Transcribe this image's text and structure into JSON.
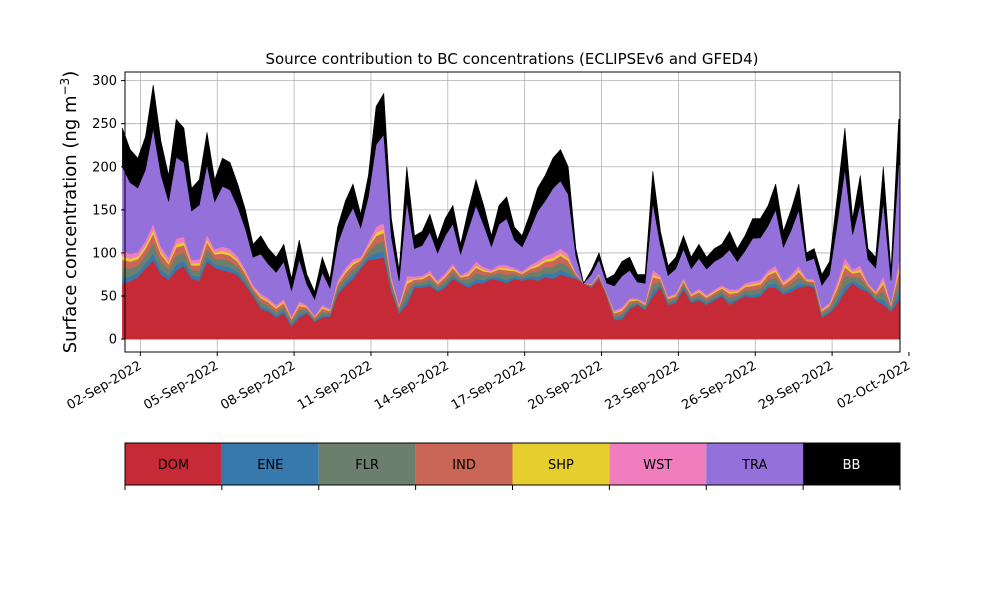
{
  "chart_data": {
    "type": "area",
    "stacked": true,
    "title": "Source contribution to BC concentrations (ECLIPSEv6 and GFED4)",
    "ylabel_text": "Surface concentration (ng m",
    "ylabel_sup": "−3",
    "ylabel_close": ")",
    "xlabel": "",
    "ylim": [
      -15,
      310
    ],
    "yticks": [
      0,
      50,
      100,
      150,
      200,
      250,
      300
    ],
    "xrange_days": [
      0.4,
      30.65
    ],
    "x_date_start": "2022-09-01",
    "xticks": [
      {
        "day": 1,
        "label": "02-Sep-2022"
      },
      {
        "day": 4,
        "label": "05-Sep-2022"
      },
      {
        "day": 7,
        "label": "08-Sep-2022"
      },
      {
        "day": 10,
        "label": "11-Sep-2022"
      },
      {
        "day": 13,
        "label": "14-Sep-2022"
      },
      {
        "day": 16,
        "label": "17-Sep-2022"
      },
      {
        "day": 19,
        "label": "20-Sep-2022"
      },
      {
        "day": 22,
        "label": "23-Sep-2022"
      },
      {
        "day": 25,
        "label": "26-Sep-2022"
      },
      {
        "day": 28,
        "label": "29-Sep-2022"
      },
      {
        "day": 31,
        "label": "02-Oct-2022"
      }
    ],
    "grid": true,
    "legend": "colorbar-below",
    "series": [
      {
        "name": "DOM",
        "color": "#c52a36"
      },
      {
        "name": "ENE",
        "color": "#3778ad"
      },
      {
        "name": "FLR",
        "color": "#6b7f6c"
      },
      {
        "name": "IND",
        "color": "#c96656"
      },
      {
        "name": "SHP",
        "color": "#e6ce2e"
      },
      {
        "name": "WST",
        "color": "#f07dbe"
      },
      {
        "name": "TRA",
        "color": "#9470da"
      },
      {
        "name": "BB",
        "color": "#000000"
      }
    ],
    "dom_points": [
      [
        0.3,
        65
      ],
      [
        0.6,
        67
      ],
      [
        0.9,
        72
      ],
      [
        1.2,
        82
      ],
      [
        1.5,
        92
      ],
      [
        1.8,
        75
      ],
      [
        2.1,
        69
      ],
      [
        2.4,
        80
      ],
      [
        2.7,
        85
      ],
      [
        3.0,
        70
      ],
      [
        3.3,
        68
      ],
      [
        3.6,
        90
      ],
      [
        3.9,
        83
      ],
      [
        4.2,
        80
      ],
      [
        4.5,
        78
      ],
      [
        4.8,
        74
      ],
      [
        5.1,
        63
      ],
      [
        5.4,
        50
      ],
      [
        5.7,
        35
      ],
      [
        6.0,
        32
      ],
      [
        6.3,
        25
      ],
      [
        6.6,
        30
      ],
      [
        6.9,
        15
      ],
      [
        7.2,
        25
      ],
      [
        7.5,
        30
      ],
      [
        7.8,
        20
      ],
      [
        8.1,
        25
      ],
      [
        8.4,
        26
      ],
      [
        8.7,
        52
      ],
      [
        9.0,
        62
      ],
      [
        9.3,
        70
      ],
      [
        9.6,
        82
      ],
      [
        9.9,
        92
      ],
      [
        10.2,
        93
      ],
      [
        10.5,
        95
      ],
      [
        10.8,
        55
      ],
      [
        11.1,
        30
      ],
      [
        11.4,
        40
      ],
      [
        11.7,
        60
      ],
      [
        12.0,
        60
      ],
      [
        12.3,
        62
      ],
      [
        12.6,
        55
      ],
      [
        12.9,
        60
      ],
      [
        13.2,
        70
      ],
      [
        13.5,
        65
      ],
      [
        13.8,
        60
      ],
      [
        14.1,
        65
      ],
      [
        14.4,
        65
      ],
      [
        14.7,
        70
      ],
      [
        15.0,
        68
      ],
      [
        15.3,
        65
      ],
      [
        15.6,
        70
      ],
      [
        15.9,
        68
      ],
      [
        16.2,
        70
      ],
      [
        16.5,
        68
      ],
      [
        16.8,
        72
      ],
      [
        17.1,
        70
      ],
      [
        17.4,
        75
      ],
      [
        17.7,
        72
      ],
      [
        18.0,
        70
      ],
      [
        18.3,
        65
      ],
      [
        18.6,
        60
      ],
      [
        18.9,
        70
      ],
      [
        19.2,
        50
      ],
      [
        19.5,
        22
      ],
      [
        19.8,
        23
      ],
      [
        20.1,
        35
      ],
      [
        20.4,
        40
      ],
      [
        20.7,
        34
      ],
      [
        21.0,
        50
      ],
      [
        21.3,
        60
      ],
      [
        21.6,
        40
      ],
      [
        21.9,
        42
      ],
      [
        22.2,
        58
      ],
      [
        22.5,
        42
      ],
      [
        22.8,
        45
      ],
      [
        23.1,
        40
      ],
      [
        23.4,
        45
      ],
      [
        23.7,
        50
      ],
      [
        24.0,
        40
      ],
      [
        24.3,
        45
      ],
      [
        24.6,
        50
      ],
      [
        24.9,
        48
      ],
      [
        25.2,
        50
      ],
      [
        25.5,
        60
      ],
      [
        25.8,
        60
      ],
      [
        26.1,
        52
      ],
      [
        26.4,
        55
      ],
      [
        26.7,
        60
      ],
      [
        27.0,
        62
      ],
      [
        27.3,
        60
      ],
      [
        27.6,
        25
      ],
      [
        27.9,
        30
      ],
      [
        28.2,
        40
      ],
      [
        28.5,
        55
      ],
      [
        28.8,
        65
      ],
      [
        29.1,
        58
      ],
      [
        29.4,
        55
      ],
      [
        29.7,
        45
      ],
      [
        30.0,
        40
      ],
      [
        30.3,
        32
      ],
      [
        30.6,
        45
      ],
      [
        30.65,
        45
      ]
    ],
    "total_points": [
      [
        0.3,
        245
      ],
      [
        0.6,
        220
      ],
      [
        0.9,
        210
      ],
      [
        1.2,
        235
      ],
      [
        1.5,
        295
      ],
      [
        1.8,
        230
      ],
      [
        2.1,
        190
      ],
      [
        2.4,
        255
      ],
      [
        2.7,
        245
      ],
      [
        3.0,
        175
      ],
      [
        3.3,
        185
      ],
      [
        3.6,
        240
      ],
      [
        3.9,
        185
      ],
      [
        4.2,
        210
      ],
      [
        4.5,
        205
      ],
      [
        4.8,
        180
      ],
      [
        5.1,
        150
      ],
      [
        5.4,
        110
      ],
      [
        5.7,
        120
      ],
      [
        6.0,
        105
      ],
      [
        6.3,
        95
      ],
      [
        6.6,
        110
      ],
      [
        6.9,
        70
      ],
      [
        7.2,
        115
      ],
      [
        7.5,
        75
      ],
      [
        7.8,
        55
      ],
      [
        8.1,
        95
      ],
      [
        8.4,
        70
      ],
      [
        8.7,
        130
      ],
      [
        9.0,
        160
      ],
      [
        9.3,
        180
      ],
      [
        9.6,
        145
      ],
      [
        9.9,
        190
      ],
      [
        10.2,
        270
      ],
      [
        10.5,
        285
      ],
      [
        10.8,
        140
      ],
      [
        11.1,
        80
      ],
      [
        11.4,
        200
      ],
      [
        11.7,
        120
      ],
      [
        12.0,
        125
      ],
      [
        12.3,
        145
      ],
      [
        12.6,
        115
      ],
      [
        12.9,
        140
      ],
      [
        13.2,
        155
      ],
      [
        13.5,
        110
      ],
      [
        13.8,
        150
      ],
      [
        14.1,
        185
      ],
      [
        14.4,
        155
      ],
      [
        14.7,
        120
      ],
      [
        15.0,
        155
      ],
      [
        15.3,
        165
      ],
      [
        15.6,
        130
      ],
      [
        15.9,
        120
      ],
      [
        16.2,
        145
      ],
      [
        16.5,
        175
      ],
      [
        16.8,
        190
      ],
      [
        17.1,
        210
      ],
      [
        17.4,
        220
      ],
      [
        17.7,
        200
      ],
      [
        18.0,
        105
      ],
      [
        18.3,
        65
      ],
      [
        18.6,
        80
      ],
      [
        18.9,
        100
      ],
      [
        19.2,
        70
      ],
      [
        19.5,
        75
      ],
      [
        19.8,
        90
      ],
      [
        20.1,
        95
      ],
      [
        20.4,
        75
      ],
      [
        20.7,
        75
      ],
      [
        21.0,
        195
      ],
      [
        21.3,
        125
      ],
      [
        21.6,
        85
      ],
      [
        21.9,
        95
      ],
      [
        22.2,
        120
      ],
      [
        22.5,
        95
      ],
      [
        22.8,
        110
      ],
      [
        23.1,
        95
      ],
      [
        23.4,
        105
      ],
      [
        23.7,
        110
      ],
      [
        24.0,
        125
      ],
      [
        24.3,
        105
      ],
      [
        24.6,
        120
      ],
      [
        24.9,
        140
      ],
      [
        25.2,
        140
      ],
      [
        25.5,
        155
      ],
      [
        25.8,
        180
      ],
      [
        26.1,
        125
      ],
      [
        26.4,
        150
      ],
      [
        26.7,
        180
      ],
      [
        27.0,
        100
      ],
      [
        27.3,
        105
      ],
      [
        27.6,
        75
      ],
      [
        27.9,
        90
      ],
      [
        28.2,
        165
      ],
      [
        28.5,
        245
      ],
      [
        28.8,
        140
      ],
      [
        29.1,
        190
      ],
      [
        29.4,
        105
      ],
      [
        29.7,
        95
      ],
      [
        30.0,
        200
      ],
      [
        30.3,
        80
      ],
      [
        30.6,
        255
      ],
      [
        30.65,
        255
      ]
    ]
  }
}
